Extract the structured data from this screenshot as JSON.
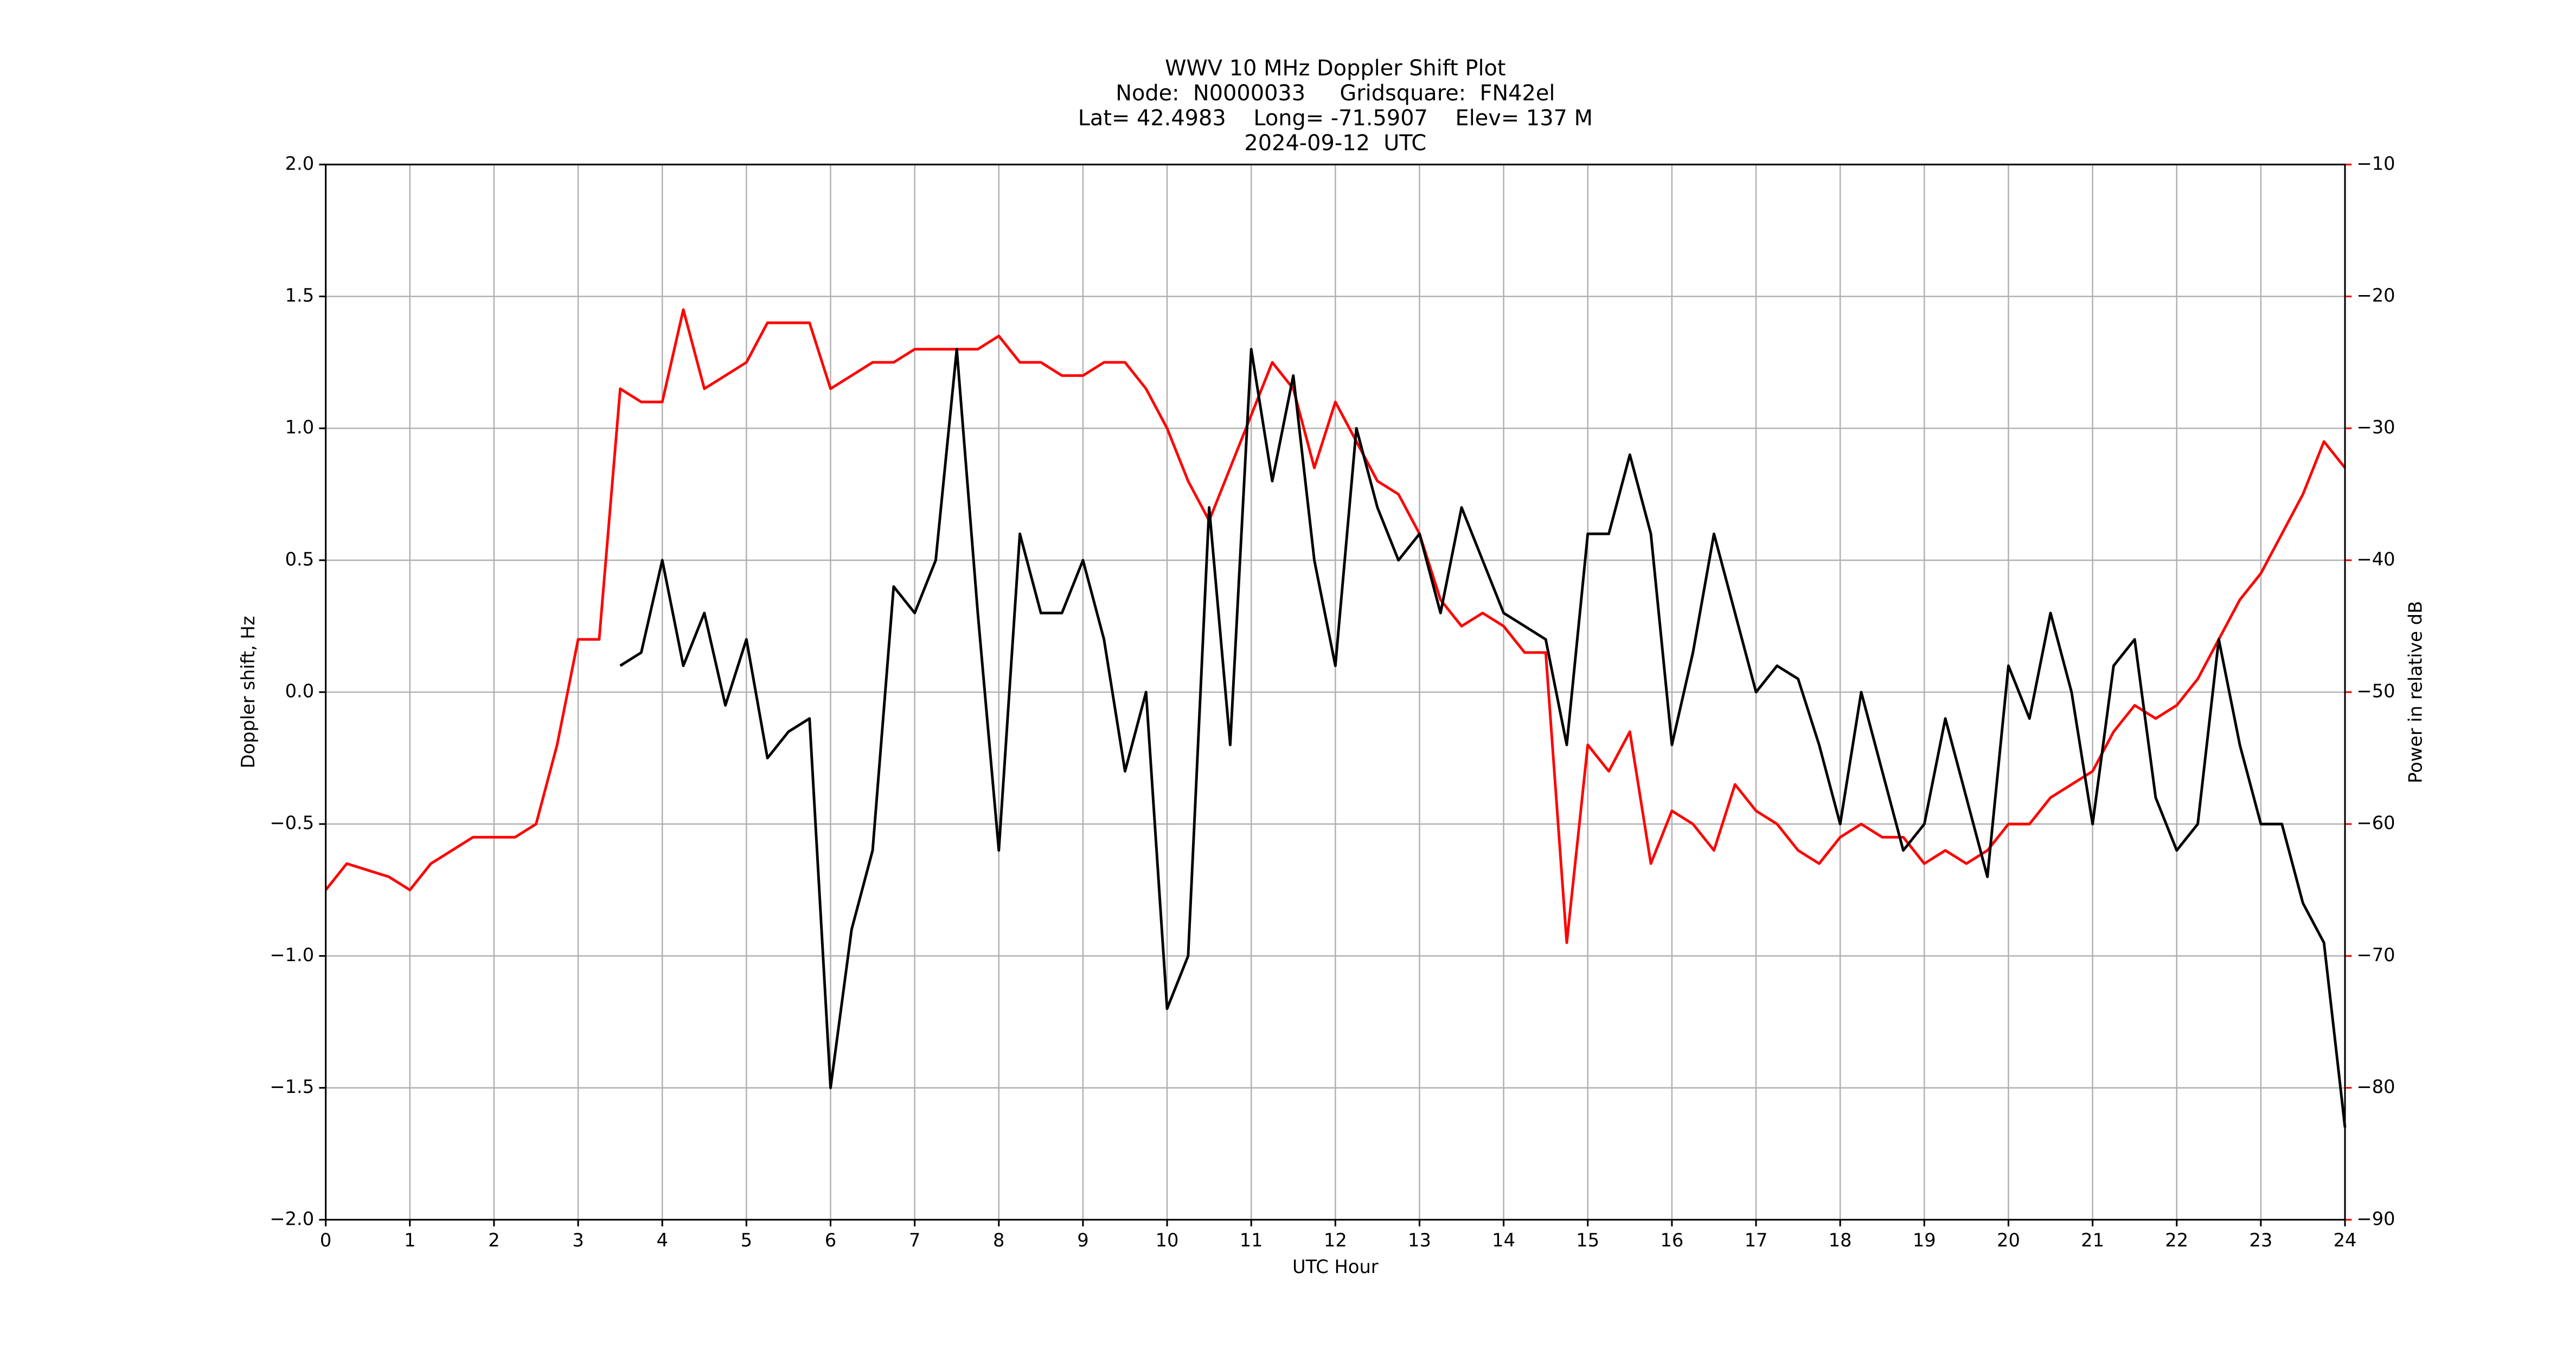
{
  "chart_data": {
    "type": "line",
    "title": [
      "WWV 10 MHz Doppler Shift Plot",
      "Node:  N0000033     Gridsquare:  FN42el",
      "Lat= 42.4983    Long= -71.5907    Elev= 137 M",
      "2024-09-12  UTC"
    ],
    "xlabel": "UTC Hour",
    "ylabel": "Doppler shift, Hz",
    "y2label": "Power in relative dB",
    "x": [
      0,
      0.25,
      0.5,
      0.75,
      1,
      1.25,
      1.5,
      1.75,
      2,
      2.25,
      2.5,
      2.75,
      3,
      3.25,
      3.5,
      3.75,
      4,
      4.25,
      4.5,
      4.75,
      5,
      5.25,
      5.5,
      5.75,
      6,
      6.25,
      6.5,
      6.75,
      7,
      7.25,
      7.5,
      7.75,
      8,
      8.25,
      8.5,
      8.75,
      9,
      9.25,
      9.5,
      9.75,
      10,
      10.25,
      10.5,
      10.75,
      11,
      11.25,
      11.5,
      11.75,
      12,
      12.25,
      12.5,
      12.75,
      13,
      13.25,
      13.5,
      13.75,
      14,
      14.25,
      14.5,
      14.75,
      15,
      15.25,
      15.5,
      15.75,
      16,
      16.25,
      16.5,
      16.75,
      17,
      17.25,
      17.5,
      17.75,
      18,
      18.25,
      18.5,
      18.75,
      19,
      19.25,
      19.5,
      19.75,
      20,
      20.25,
      20.5,
      20.75,
      21,
      21.25,
      21.5,
      21.75,
      22,
      22.25,
      22.5,
      22.75,
      23,
      23.25,
      23.5,
      23.75,
      24
    ],
    "series": [
      {
        "color": "#000000",
        "values": [
          null,
          null,
          null,
          null,
          null,
          null,
          null,
          null,
          null,
          null,
          null,
          null,
          null,
          null,
          0.1,
          0.15,
          0.5,
          0.1,
          0.3,
          -0.05,
          0.2,
          -0.25,
          -0.15,
          -0.1,
          -1.5,
          -0.9,
          -0.6,
          0.4,
          0.3,
          0.5,
          1.3,
          0.3,
          -0.6,
          0.6,
          0.3,
          0.3,
          0.5,
          0.2,
          -0.3,
          0.0,
          -1.2,
          -1.0,
          0.7,
          -0.2,
          1.3,
          0.8,
          1.2,
          0.5,
          0.1,
          1.0,
          0.7,
          0.5,
          0.6,
          0.3,
          0.7,
          0.5,
          0.3,
          0.25,
          0.2,
          -0.2,
          0.6,
          0.6,
          0.9,
          0.6,
          -0.2,
          0.15,
          0.6,
          0.3,
          0.0,
          0.1,
          0.05,
          -0.2,
          -0.5,
          0.0,
          -0.3,
          -0.6,
          -0.5,
          -0.1,
          -0.4,
          -0.7,
          0.1,
          -0.1,
          0.3,
          0.0,
          -0.5,
          0.1,
          0.2,
          -0.4,
          -0.6,
          -0.5,
          0.2,
          -0.2,
          -0.5,
          -0.5,
          -0.8,
          -0.95,
          -1.65
        ]
      },
      {
        "color": "#ff0000",
        "axis": "y2",
        "values": [
          -65,
          -63,
          -63.5,
          -64,
          -65,
          -63,
          -62,
          -61,
          -61,
          -61,
          -60,
          -54,
          -46,
          -46,
          -27,
          -28,
          -28,
          -21,
          -27,
          -26,
          -25,
          -22,
          -22,
          -22,
          -27,
          -26,
          -25,
          -25,
          -24,
          -24,
          -24,
          -24,
          -23,
          -25,
          -25,
          -26,
          -26,
          -25,
          -25,
          -27,
          -30,
          -34,
          -37,
          -33,
          -29,
          -25,
          -27,
          -33,
          -28,
          -31,
          -34,
          -35,
          -38,
          -43,
          -45,
          -44,
          -45,
          -47,
          -47,
          -69,
          -54,
          -56,
          -53,
          -63,
          -59,
          -60,
          -62,
          -57,
          -59,
          -60,
          -62,
          -63,
          -61,
          -60,
          -61,
          -61,
          -63,
          -62,
          -63,
          -62,
          -60,
          -60,
          -58,
          -57,
          -56,
          -53,
          -51,
          -52,
          -51,
          -49,
          -46,
          -43,
          -41,
          -38,
          -35,
          -31,
          -33
        ]
      }
    ],
    "xlim": [
      0,
      24
    ],
    "xticks": [
      0,
      1,
      2,
      3,
      4,
      5,
      6,
      7,
      8,
      9,
      10,
      11,
      12,
      13,
      14,
      15,
      16,
      17,
      18,
      19,
      20,
      21,
      22,
      23,
      24
    ],
    "ylim": [
      -2,
      2
    ],
    "yticks": [
      {
        "value": -2,
        "label": "−2.0"
      },
      {
        "value": -1.5,
        "label": "−1.5"
      },
      {
        "value": -1,
        "label": "−1.0"
      },
      {
        "value": -0.5,
        "label": "−0.5"
      },
      {
        "value": 0,
        "label": "0.0"
      },
      {
        "value": 0.5,
        "label": "0.5"
      },
      {
        "value": 1,
        "label": "1.0"
      },
      {
        "value": 1.5,
        "label": "1.5"
      },
      {
        "value": 2,
        "label": "2.0"
      }
    ],
    "y2lim": [
      -90,
      -10
    ],
    "y2ticks": [
      {
        "value": -90,
        "label": "−90"
      },
      {
        "value": -80,
        "label": "−80"
      },
      {
        "value": -70,
        "label": "−70"
      },
      {
        "value": -60,
        "label": "−60"
      },
      {
        "value": -50,
        "label": "−50"
      },
      {
        "value": -40,
        "label": "−40"
      },
      {
        "value": -30,
        "label": "−30"
      },
      {
        "value": -20,
        "label": "−20"
      },
      {
        "value": -10,
        "label": "−10"
      }
    ],
    "y2color": "#ff0000",
    "grid": true
  }
}
